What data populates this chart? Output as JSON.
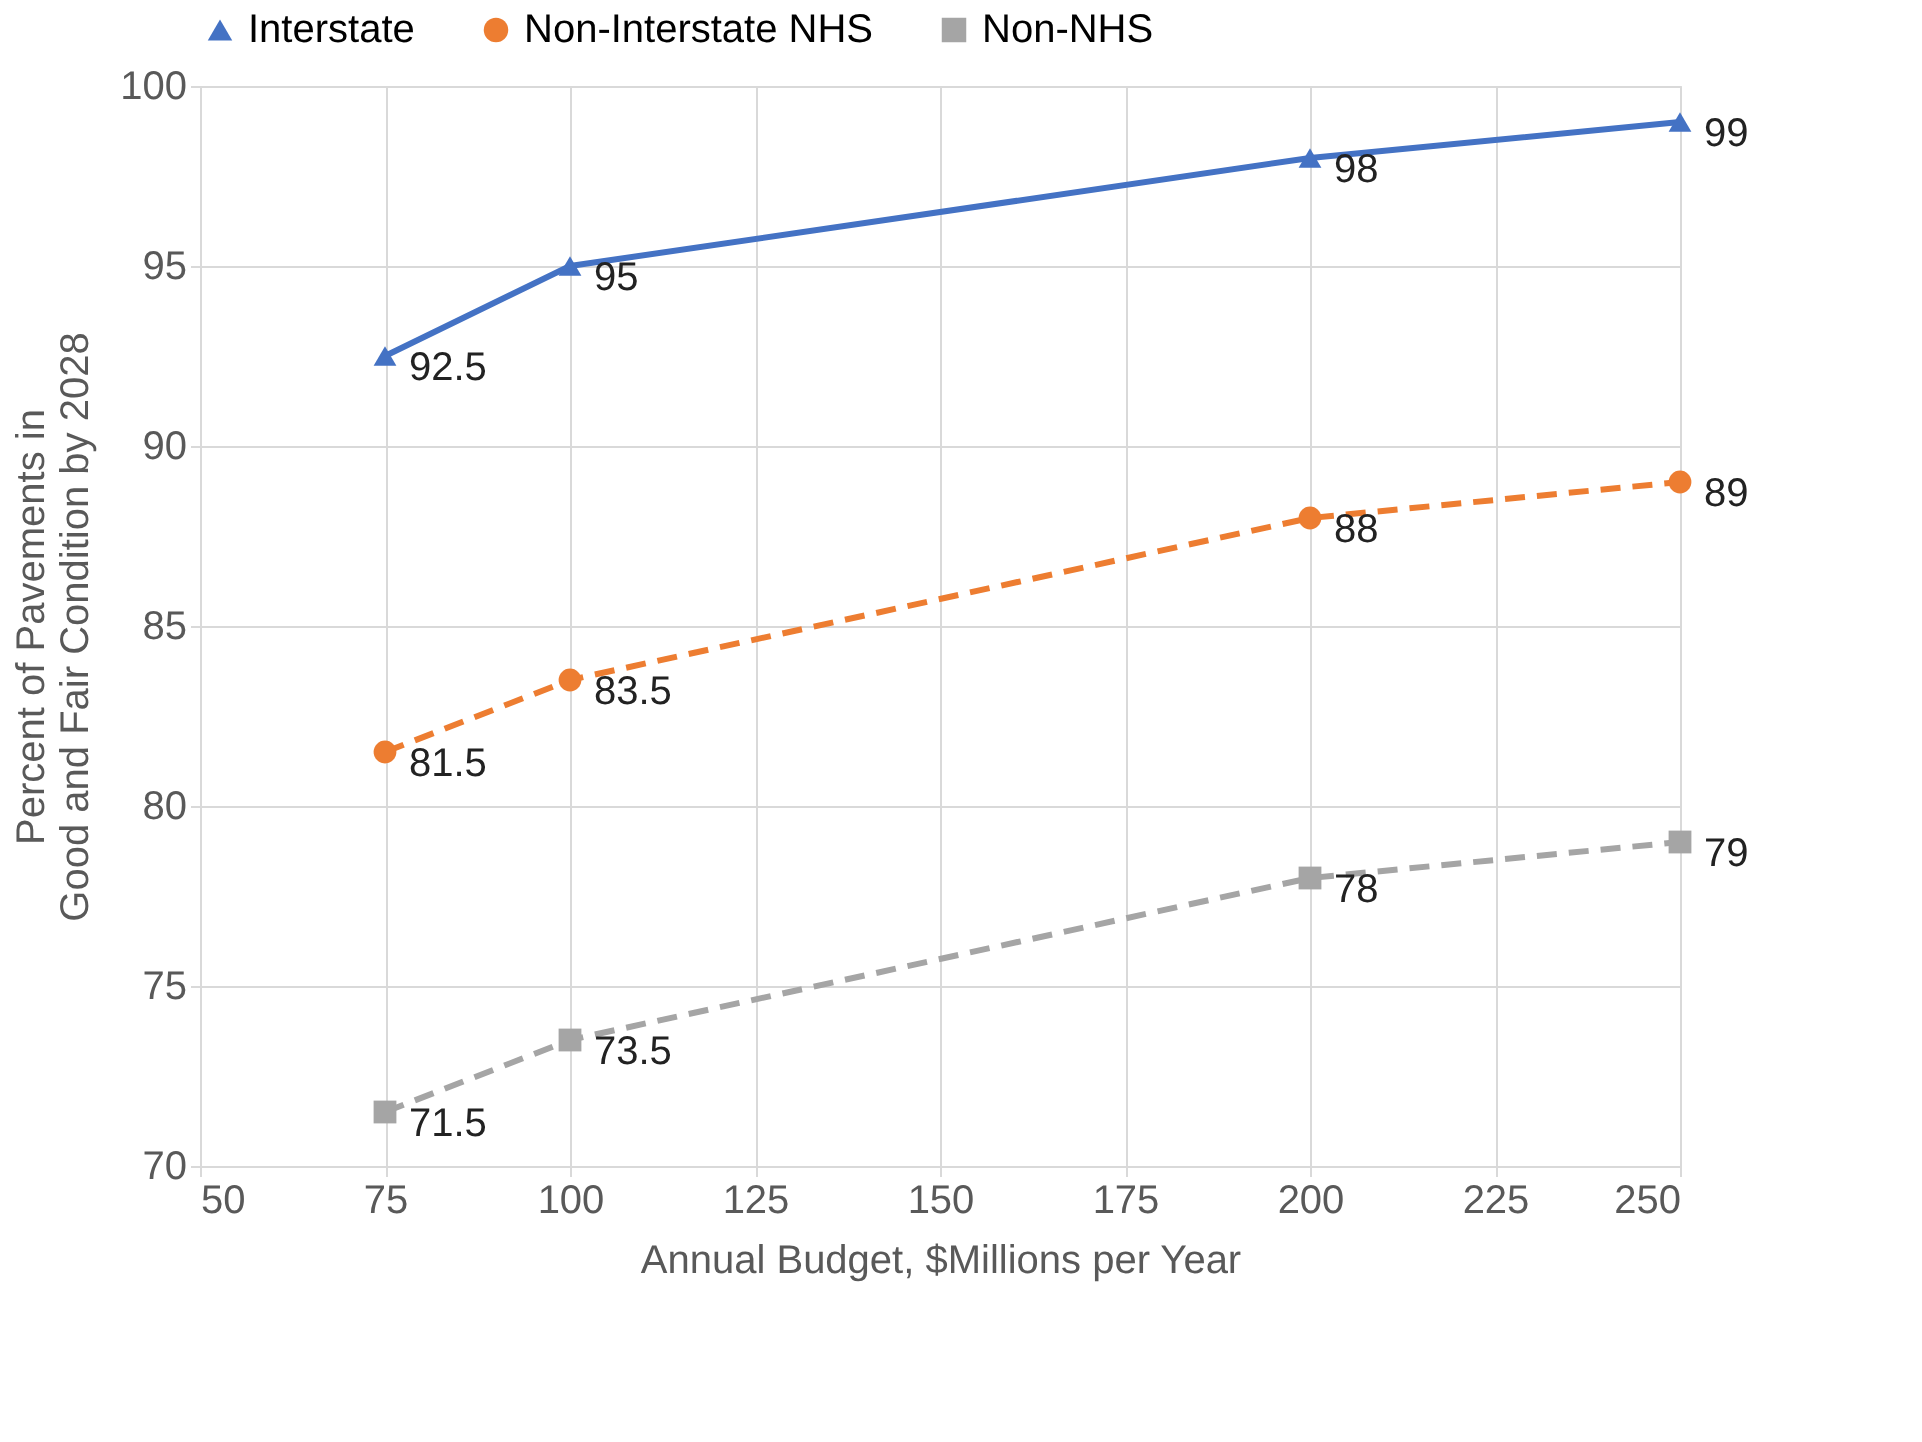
{
  "chart_data": {
    "type": "line",
    "xlabel": "Annual Budget, $Millions per Year",
    "ylabel": "Percent of Pavements in\nGood and Fair Condition by 2028",
    "x": [
      75,
      100,
      200,
      250
    ],
    "series": [
      {
        "name": "Interstate",
        "color": "#4472c4",
        "values": [
          92.5,
          95,
          98,
          99
        ],
        "marker": "triangle",
        "line_style": "solid"
      },
      {
        "name": "Non-Interstate NHS",
        "color": "#ed7d31",
        "values": [
          81.5,
          83.5,
          88,
          89
        ],
        "marker": "circle",
        "line_style": "dashed"
      },
      {
        "name": "Non-NHS",
        "color": "#a5a5a5",
        "values": [
          71.5,
          73.5,
          78,
          79
        ],
        "marker": "square",
        "line_style": "dashed"
      }
    ],
    "xlim": [
      50,
      250
    ],
    "xticks": [
      50,
      75,
      100,
      125,
      150,
      175,
      200,
      225,
      250
    ],
    "ylim": [
      70,
      100
    ],
    "yticks": [
      70,
      75,
      80,
      85,
      90,
      95,
      100
    ],
    "grid": true,
    "legend": "top",
    "data_labels": true
  }
}
